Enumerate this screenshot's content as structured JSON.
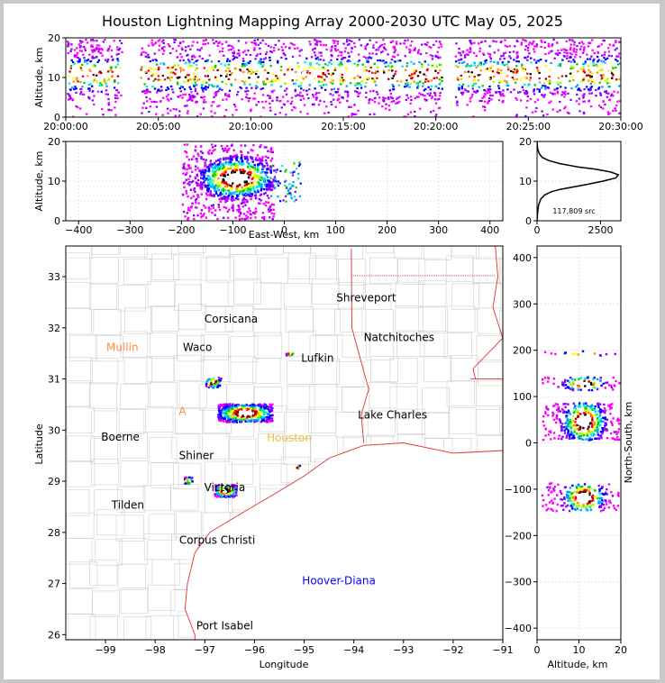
{
  "title": "Houston Lightning Mapping Array 2000-2030 UTC May 05, 2025",
  "chart_data": [
    {
      "type": "heatmap",
      "panel": "altitude-vs-time",
      "ylabel": "Altitude, km",
      "xticks": [
        "20:00:00",
        "20:05:00",
        "20:10:00",
        "20:15:00",
        "20:20:00",
        "20:25:00",
        "20:30:00"
      ],
      "yticks": [
        "0",
        "10",
        "20"
      ],
      "xlim": [
        "20:00:00",
        "20:30:00"
      ],
      "ylim": [
        0,
        20
      ],
      "gaps_minutes": [
        [
          3.0,
          4.0
        ],
        [
          20.3,
          21.0
        ]
      ],
      "core_altitude_km": [
        8,
        14
      ]
    },
    {
      "type": "heatmap",
      "panel": "altitude-vs-east-west",
      "xlabel": "East-West, km",
      "ylabel": "Altitude, km",
      "xticks": [
        "−400",
        "−300",
        "−200",
        "−100",
        "0",
        "100",
        "200",
        "300",
        "400"
      ],
      "yticks": [
        "0",
        "10",
        "20"
      ],
      "xlim": [
        -425,
        425
      ],
      "ylim": [
        0,
        20
      ]
    },
    {
      "type": "line",
      "panel": "source-altitude-histogram",
      "annotation": "117,809 src",
      "xticks": [
        "0",
        "2500"
      ],
      "yticks": [
        "0",
        "10",
        "20"
      ],
      "xlim": [
        0,
        3300
      ],
      "ylim": [
        0,
        20
      ],
      "x": [
        0,
        20,
        60,
        150,
        300,
        550,
        900,
        1400,
        2000,
        2600,
        3100,
        3200,
        2900,
        2300,
        1600,
        900,
        450,
        200,
        80,
        30,
        10,
        0
      ],
      "y": [
        0,
        2,
        4,
        5.5,
        6.5,
        7.3,
        7.9,
        8.5,
        9.2,
        10,
        10.8,
        11.6,
        12.3,
        13,
        13.6,
        14.4,
        15.2,
        16,
        17,
        18,
        19,
        20
      ]
    },
    {
      "type": "scatter",
      "panel": "plan-view-map",
      "xlabel": "Longitude",
      "ylabel": "Latitude",
      "xticks": [
        "−99",
        "−98",
        "−97",
        "−96",
        "−95",
        "−94",
        "−93",
        "−92",
        "−91"
      ],
      "yticks": [
        "26",
        "27",
        "28",
        "29",
        "30",
        "31",
        "32",
        "33"
      ],
      "xlim": [
        -99.8,
        -91
      ],
      "ylim": [
        25.9,
        33.6
      ],
      "cities": [
        {
          "name": "Shreveport",
          "lon": -93.75,
          "lat": 32.52,
          "color": "#000000"
        },
        {
          "name": "Corsicana",
          "lon": -96.47,
          "lat": 32.1,
          "color": "#000000"
        },
        {
          "name": "Natchitoches",
          "lon": -93.09,
          "lat": 31.74,
          "color": "#000000"
        },
        {
          "name": "Mullin",
          "lon": -98.66,
          "lat": 31.55,
          "color": "#ff8c40"
        },
        {
          "name": "Waco",
          "lon": -97.15,
          "lat": 31.55,
          "color": "#000000"
        },
        {
          "name": "Lufkin",
          "lon": -94.73,
          "lat": 31.34,
          "color": "#000000"
        },
        {
          "name": "Lake Charles",
          "lon": -93.22,
          "lat": 30.23,
          "color": "#000000"
        },
        {
          "name": "A",
          "lon": -97.45,
          "lat": 30.3,
          "color": "#ff8c40"
        },
        {
          "name": "Houston",
          "lon": -95.3,
          "lat": 29.78,
          "color": "#e8c040"
        },
        {
          "name": "Boerne",
          "lon": -98.7,
          "lat": 29.79,
          "color": "#000000"
        },
        {
          "name": "Shiner",
          "lon": -97.17,
          "lat": 29.43,
          "color": "#000000"
        },
        {
          "name": "Victoria",
          "lon": -96.6,
          "lat": 28.81,
          "color": "#000000"
        },
        {
          "name": "Tilden",
          "lon": -98.55,
          "lat": 28.46,
          "color": "#000000"
        },
        {
          "name": "Corpus Christi",
          "lon": -96.75,
          "lat": 27.78,
          "color": "#000000"
        },
        {
          "name": "Hoover-Diana",
          "lon": -94.3,
          "lat": 26.98,
          "color": "#0000ff"
        },
        {
          "name": "Port Isabel",
          "lon": -96.6,
          "lat": 26.1,
          "color": "#000000"
        }
      ]
    },
    {
      "type": "heatmap",
      "panel": "north-south-vs-altitude",
      "xlabel": "Altitude, km",
      "ylabel": "North-South, km",
      "xticks": [
        "0",
        "10",
        "20"
      ],
      "yticks": [
        "−400",
        "−300",
        "−200",
        "−100",
        "0",
        "100",
        "200",
        "300",
        "400"
      ],
      "xlim": [
        0,
        20
      ],
      "ylim": [
        -425,
        425
      ]
    }
  ]
}
